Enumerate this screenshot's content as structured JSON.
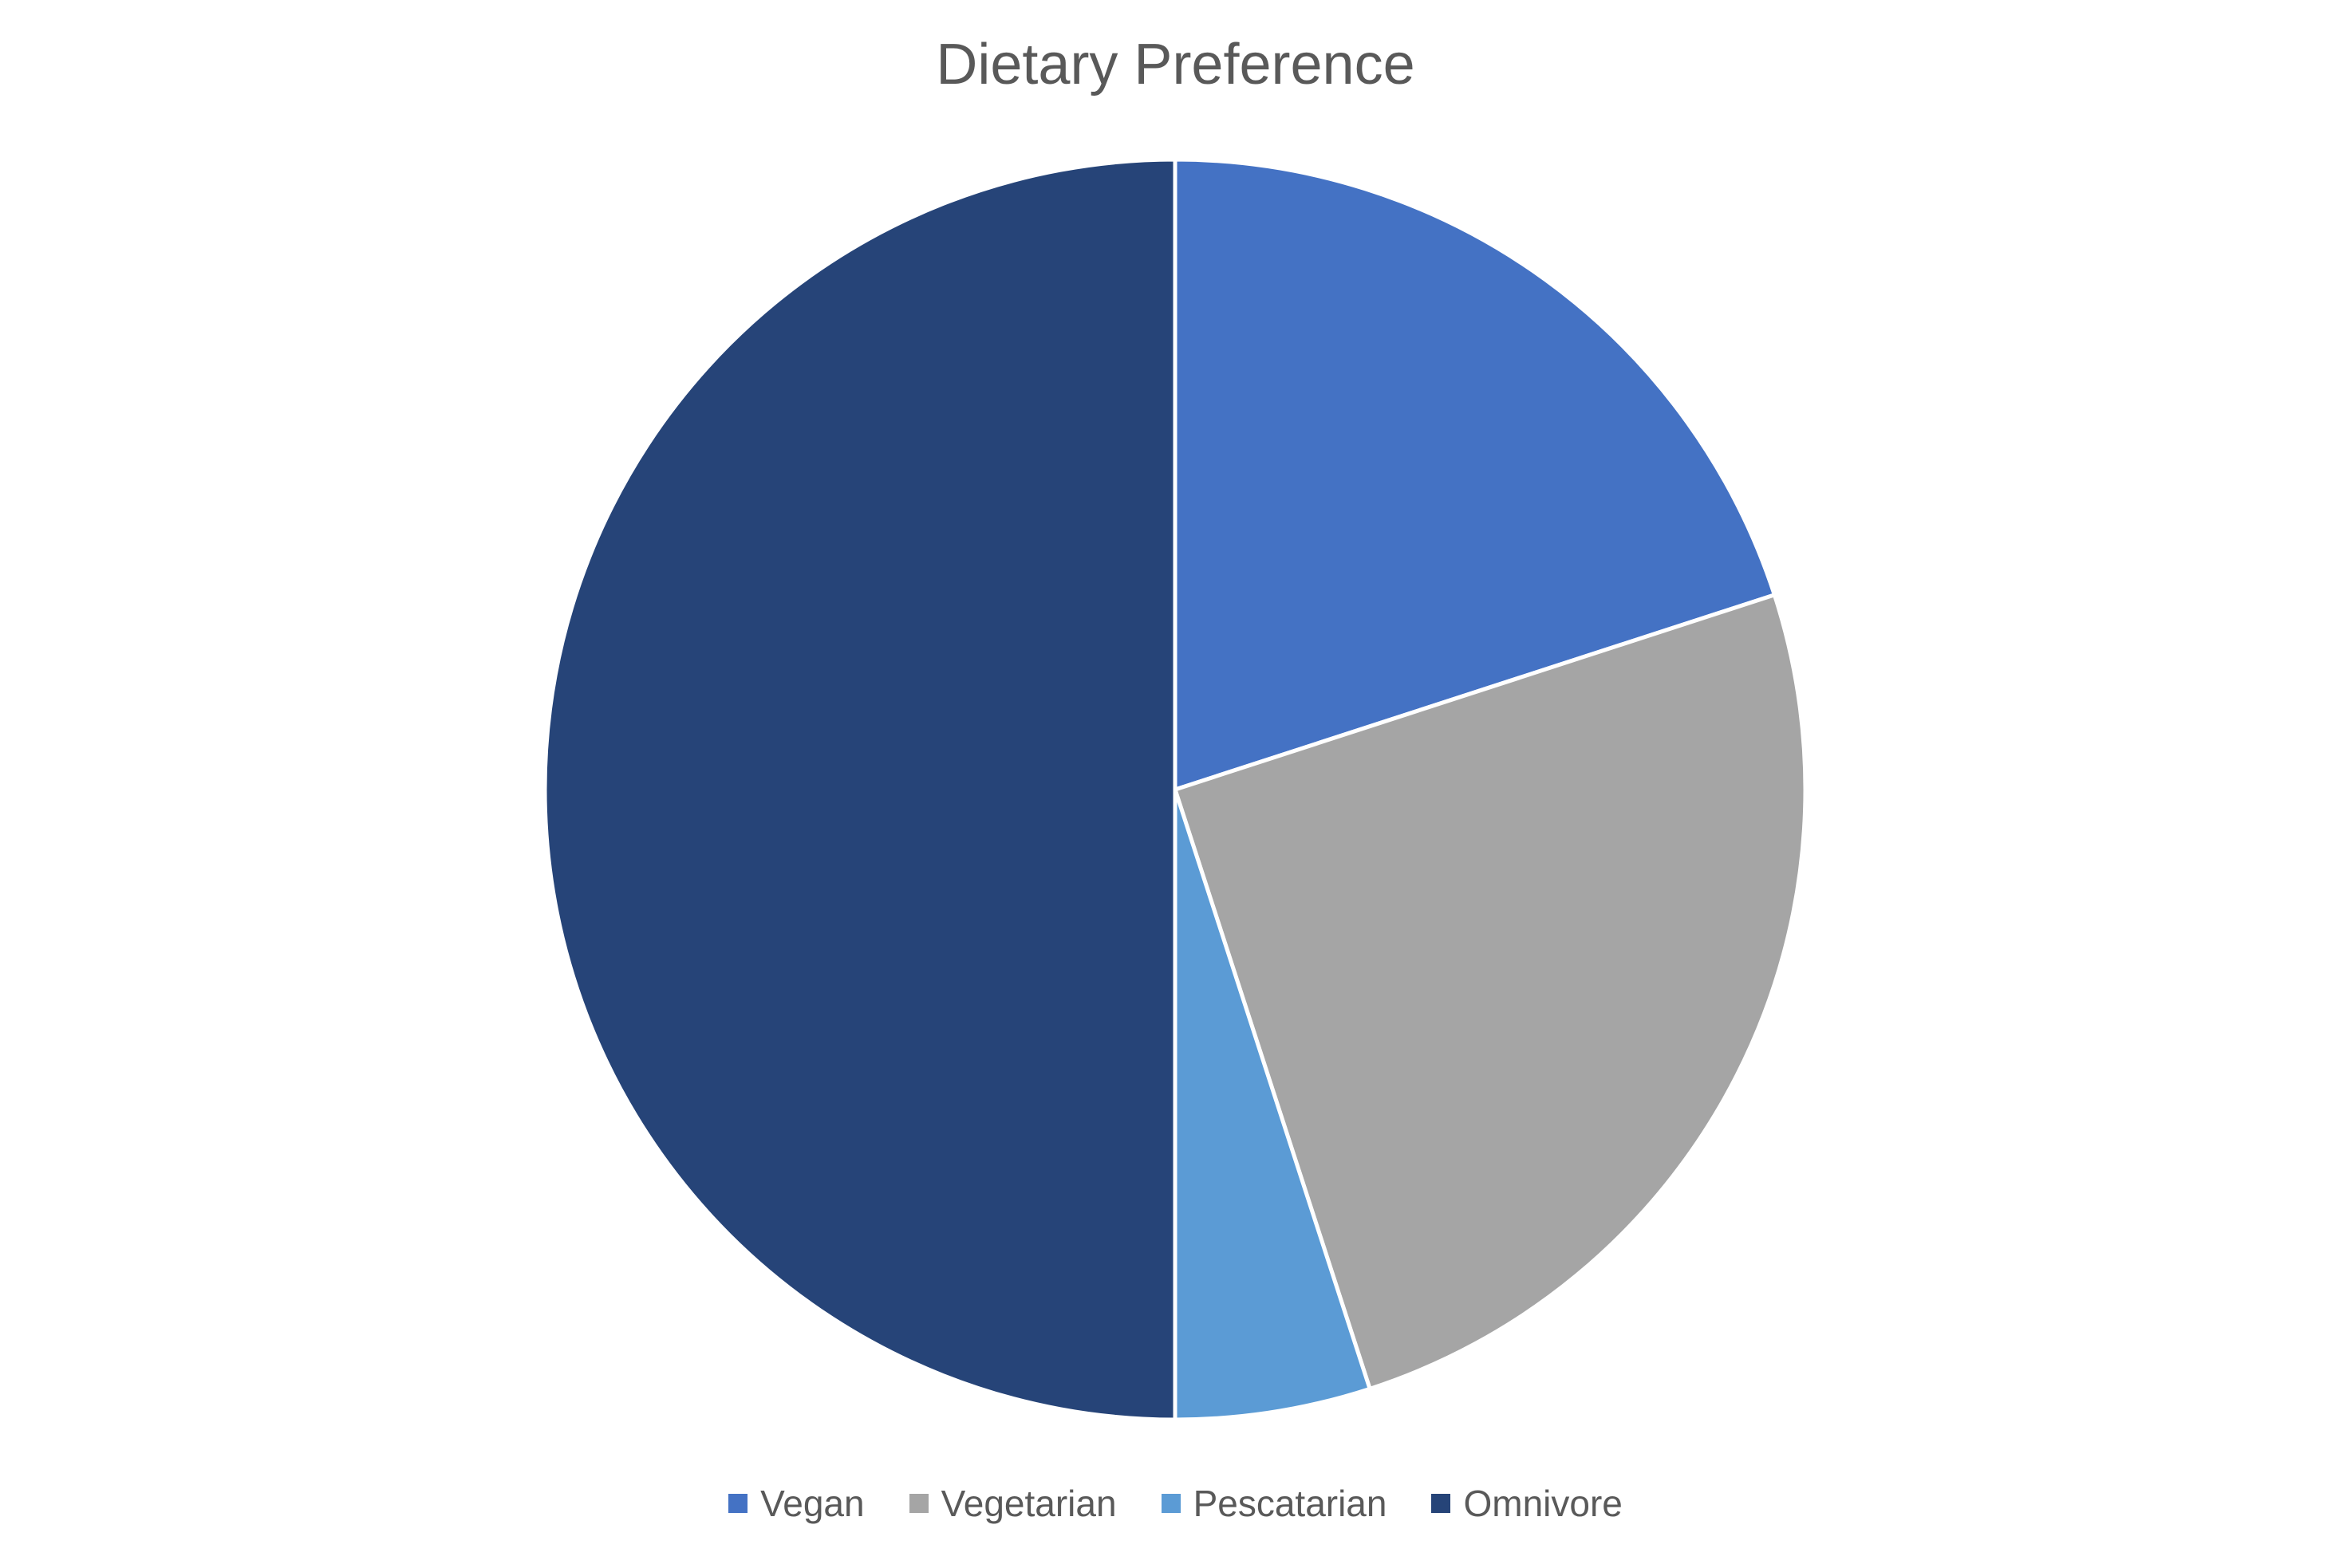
{
  "chart_data": {
    "type": "pie",
    "title": "Dietary Preference",
    "categories": [
      "Vegan",
      "Vegetarian",
      "Pescatarian",
      "Omnivore"
    ],
    "values": [
      20,
      25,
      5,
      50
    ],
    "colors": [
      "#4472C4",
      "#A5A5A5",
      "#5B9BD5",
      "#264478"
    ],
    "legend_position": "bottom",
    "start_angle": "top, clockwise"
  }
}
